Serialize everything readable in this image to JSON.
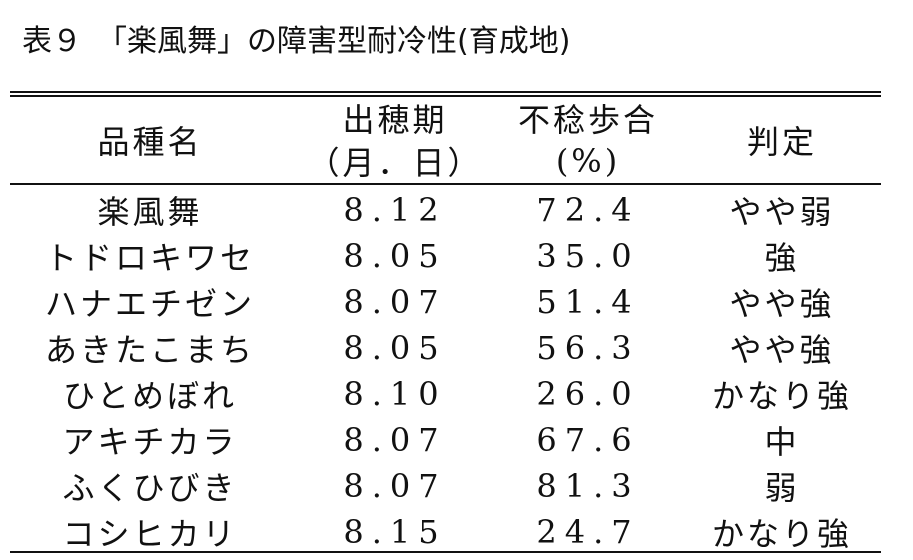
{
  "header": {
    "title": "表９　「楽風舞」の障害型耐冷性(育成地)"
  },
  "table": {
    "columns": [
      {
        "label": "品種名"
      },
      {
        "label": "出穂期",
        "sublabel": "（月．日）"
      },
      {
        "label": "不稔歩合",
        "sublabel": "(%)"
      },
      {
        "label": "判定"
      }
    ],
    "rows": [
      [
        "楽風舞",
        "8.12",
        "72.4",
        "やや弱"
      ],
      [
        "トドロキワセ",
        "8.05",
        "35.0",
        "強"
      ],
      [
        "ハナエチゼン",
        "8.07",
        "51.4",
        "やや強"
      ],
      [
        "あきたこまち",
        "8.05",
        "56.3",
        "やや強"
      ],
      [
        "ひとめぼれ",
        "8.10",
        "26.0",
        "かなり強"
      ],
      [
        "アキチカラ",
        "8.07",
        "67.6",
        "中"
      ],
      [
        "ふくひびき",
        "8.07",
        "81.3",
        "弱"
      ],
      [
        "コシヒカリ",
        "8.15",
        "24.7",
        "かなり強"
      ]
    ]
  }
}
